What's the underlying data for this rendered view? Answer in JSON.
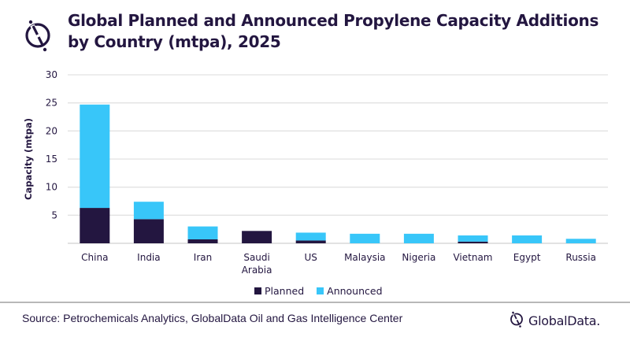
{
  "header": {
    "title_line1": "Global Planned and Announced Propylene Capacity Additions",
    "title_line2": "by Country (mtpa), 2025",
    "logo_icon": "globaldata-logo-icon"
  },
  "colors": {
    "planned": "#231640",
    "announced": "#38c6f9",
    "gridline": "#e2e2e2",
    "text": "#231640"
  },
  "chart_data": {
    "type": "bar",
    "stacked": true,
    "title": "Global Planned and Announced Propylene Capacity Additions by Country (mtpa), 2025",
    "xlabel": "",
    "ylabel": "Capacity  (mtpa)",
    "ylim": [
      0,
      30
    ],
    "yticks": [
      5,
      10,
      15,
      20,
      25,
      30
    ],
    "grid": true,
    "legend_position": "bottom",
    "categories": [
      "China",
      "India",
      "Iran",
      "Saudi Arabia",
      "US",
      "Malaysia",
      "Nigeria",
      "Vietnam",
      "Egypt",
      "Russia"
    ],
    "category_lines": [
      [
        "China"
      ],
      [
        "India"
      ],
      [
        "Iran"
      ],
      [
        "Saudi",
        "Arabia"
      ],
      [
        "US"
      ],
      [
        "Malaysia"
      ],
      [
        "Nigeria"
      ],
      [
        "Vietnam"
      ],
      [
        "Egypt"
      ],
      [
        "Russia"
      ]
    ],
    "series": [
      {
        "name": "Planned",
        "color": "#231640",
        "values": [
          6.3,
          4.3,
          0.7,
          2.2,
          0.5,
          0.0,
          0.0,
          0.3,
          0.0,
          0.0
        ]
      },
      {
        "name": "Announced",
        "color": "#38c6f9",
        "values": [
          18.4,
          3.1,
          2.3,
          0.0,
          1.4,
          1.7,
          1.7,
          1.1,
          1.4,
          0.8
        ]
      }
    ]
  },
  "legend": [
    {
      "label": "Planned",
      "color": "#231640"
    },
    {
      "label": "Announced",
      "color": "#38c6f9"
    }
  ],
  "footer": {
    "source": "Source: Petrochemicals Analytics, GlobalData Oil and Gas Intelligence Center",
    "brand": "GlobalData."
  }
}
